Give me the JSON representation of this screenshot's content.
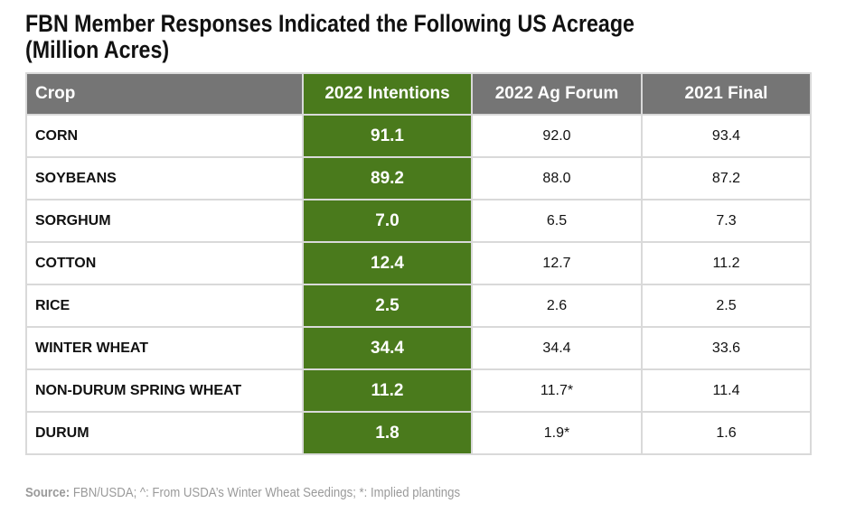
{
  "chart_data": {
    "type": "table",
    "title_line1": "FBN Member Responses Indicated the Following US Acreage",
    "title_line2": "(Million Acres)",
    "columns": [
      "Crop",
      "2022 Intentions",
      "2022 Ag Forum",
      "2021 Final"
    ],
    "rows": [
      {
        "crop": "CORN",
        "intentions_2022": "91.1",
        "ag_forum_2022": "92.0",
        "final_2021": "93.4"
      },
      {
        "crop": "SOYBEANS",
        "intentions_2022": "89.2",
        "ag_forum_2022": "88.0",
        "final_2021": "87.2"
      },
      {
        "crop": "SORGHUM",
        "intentions_2022": "7.0",
        "ag_forum_2022": "6.5",
        "final_2021": "7.3"
      },
      {
        "crop": "COTTON",
        "intentions_2022": "12.4",
        "ag_forum_2022": "12.7",
        "final_2021": "11.2"
      },
      {
        "crop": "RICE",
        "intentions_2022": "2.5",
        "ag_forum_2022": "2.6",
        "final_2021": "2.5"
      },
      {
        "crop": "WINTER WHEAT",
        "intentions_2022": "34.4",
        "ag_forum_2022": "34.4",
        "final_2021": "33.6"
      },
      {
        "crop": "NON-DURUM SPRING WHEAT",
        "intentions_2022": "11.2",
        "ag_forum_2022": "11.7*",
        "final_2021": "11.4"
      },
      {
        "crop": "DURUM",
        "intentions_2022": "1.8",
        "ag_forum_2022": "1.9*",
        "final_2021": "1.6"
      }
    ],
    "source_label": "Source:",
    "source_text": " FBN/USDA; ^: From USDA’s Winter Wheat Seedings; *: Implied plantings",
    "colors": {
      "header_bg": "#757575",
      "highlight_green": "#4a7a1c",
      "border": "#d9d9d9",
      "source_text": "#9a9a9a"
    }
  }
}
